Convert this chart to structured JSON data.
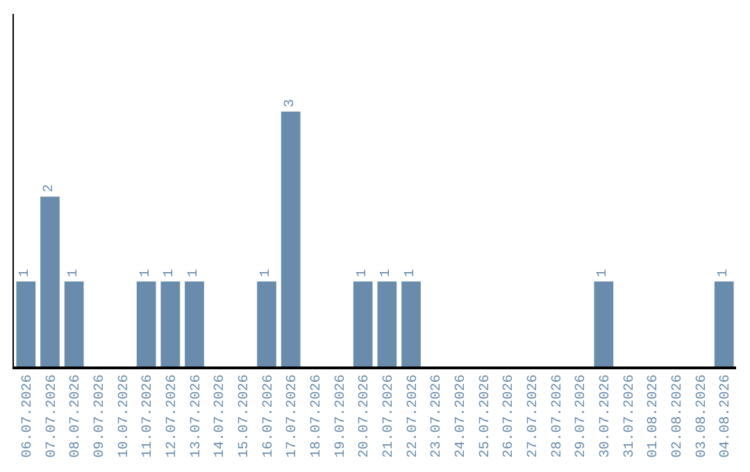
{
  "chart_data": {
    "type": "bar",
    "categories": [
      "06.07.2026",
      "07.07.2026",
      "08.07.2026",
      "09.07.2026",
      "10.07.2026",
      "11.07.2026",
      "12.07.2026",
      "13.07.2026",
      "14.07.2026",
      "15.07.2026",
      "16.07.2026",
      "17.07.2026",
      "18.07.2026",
      "19.07.2026",
      "20.07.2026",
      "21.07.2026",
      "22.07.2026",
      "23.07.2026",
      "24.07.2026",
      "25.07.2026",
      "26.07.2026",
      "27.07.2026",
      "28.07.2026",
      "29.07.2026",
      "30.07.2026",
      "31.07.2026",
      "01.08.2026",
      "02.08.2026",
      "03.08.2026",
      "04.08.2026"
    ],
    "values": [
      1,
      2,
      1,
      0,
      0,
      1,
      1,
      1,
      0,
      0,
      1,
      3,
      0,
      0,
      1,
      1,
      1,
      0,
      0,
      0,
      0,
      0,
      0,
      0,
      1,
      0,
      0,
      0,
      0,
      1
    ],
    "value_labels": [
      "1",
      "2",
      "1",
      null,
      null,
      "1",
      "1",
      "1",
      null,
      null,
      "1",
      "3",
      null,
      null,
      "1",
      "1",
      "1",
      null,
      null,
      null,
      null,
      null,
      null,
      null,
      "1",
      null,
      null,
      null,
      null,
      "1"
    ],
    "color": "#6a8cac",
    "ylim": [
      0,
      4.15
    ],
    "tick_labels": "x"
  }
}
